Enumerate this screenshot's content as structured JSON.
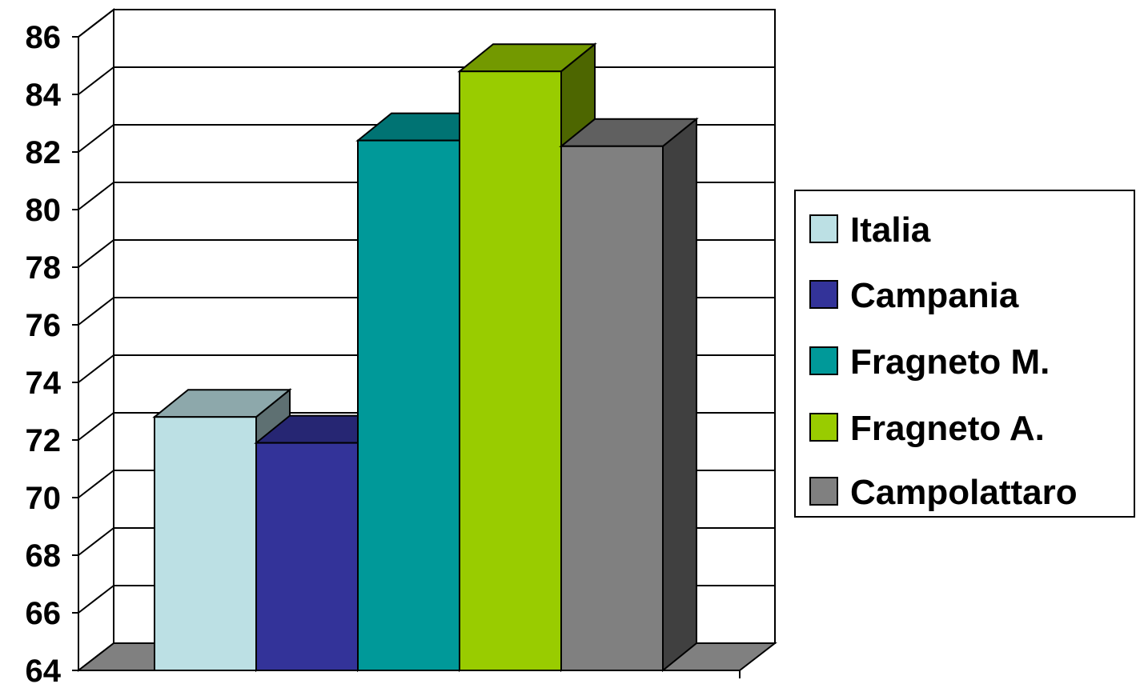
{
  "chart_data": {
    "type": "bar",
    "three_d": true,
    "grid": true,
    "legend_position": "right",
    "ylim": [
      64,
      86
    ],
    "y_ticks": [
      "64",
      "66",
      "68",
      "70",
      "72",
      "74",
      "76",
      "78",
      "80",
      "82",
      "84",
      "86"
    ],
    "series": [
      {
        "name": "Italia",
        "values": [
          72.8
        ],
        "color": "#BCE0E4"
      },
      {
        "name": "Campania",
        "values": [
          71.9
        ],
        "color": "#333399"
      },
      {
        "name": "Fragneto M.",
        "values": [
          82.4
        ],
        "color": "#009999"
      },
      {
        "name": "Fragneto A.",
        "values": [
          84.8
        ],
        "color": "#99CC00"
      },
      {
        "name": "Campolattaro",
        "values": [
          82.2
        ],
        "color": "#808080"
      }
    ]
  }
}
